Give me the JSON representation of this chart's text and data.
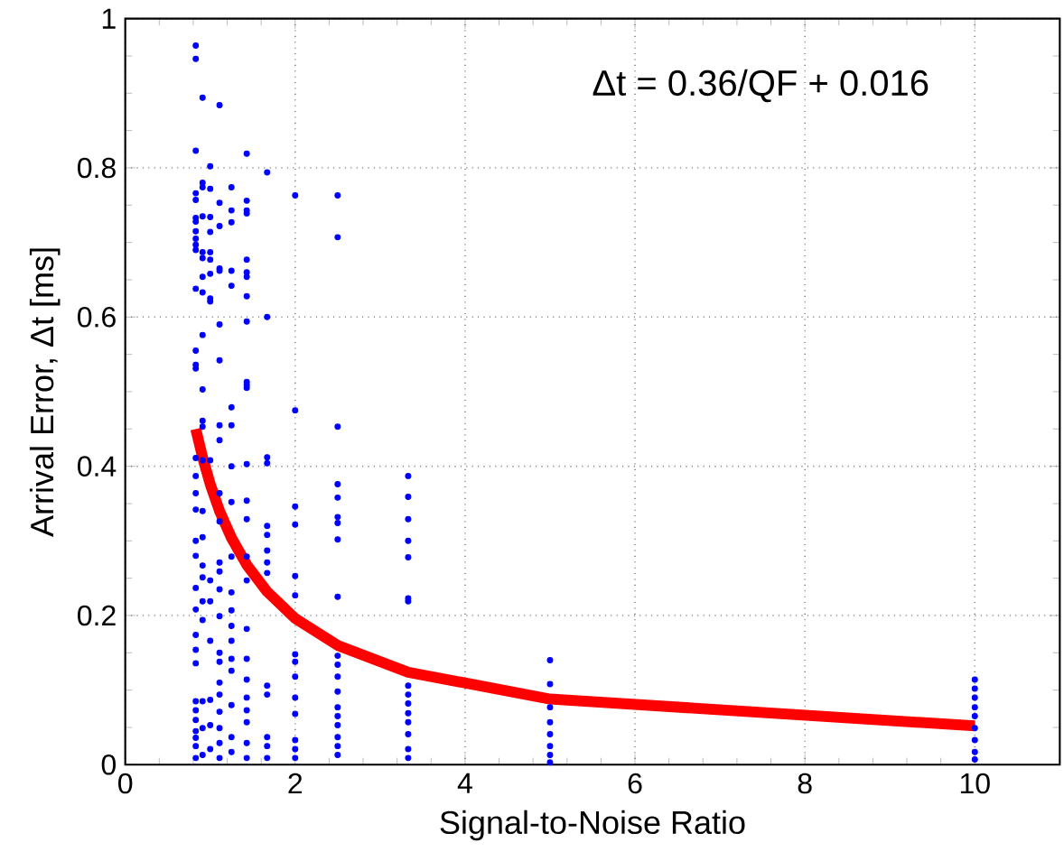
{
  "chart_data": {
    "type": "scatter",
    "xlabel": "Signal-to-Noise Ratio",
    "ylabel": "Arrival Error,  Δt [ms]",
    "annotations": [
      "Δt = 0.36/QF + 0.016"
    ],
    "xlim": [
      0,
      11
    ],
    "ylim": [
      0,
      1
    ],
    "xticks": [
      0,
      2,
      4,
      6,
      8,
      10
    ],
    "yticks": [
      0,
      0.2,
      0.4,
      0.6,
      0.8,
      1
    ],
    "grid": true,
    "series": [
      {
        "color": "#0000ff",
        "marker": "circle",
        "x": [
          0.83,
          0.83,
          0.83,
          0.83,
          0.83,
          0.83,
          0.83,
          0.83,
          0.83,
          0.83,
          0.83,
          0.83,
          0.83,
          0.83,
          0.83,
          0.83,
          0.83,
          0.83,
          0.83,
          0.83,
          0.83,
          0.83,
          0.83,
          0.83,
          0.83,
          0.83,
          0.83,
          0.83,
          0.83,
          0.83,
          0.83,
          0.83,
          0.83,
          0.91,
          0.91,
          0.91,
          0.91,
          0.91,
          0.91,
          0.91,
          0.91,
          0.91,
          0.91,
          0.91,
          0.91,
          0.91,
          0.91,
          0.91,
          0.91,
          0.91,
          0.91,
          0.91,
          0.91,
          0.91,
          0.91,
          1,
          1,
          1,
          1,
          1,
          1,
          1,
          1,
          1,
          1,
          1,
          1,
          1,
          1,
          1,
          1,
          1.11,
          1.11,
          1.11,
          1.11,
          1.11,
          1.11,
          1.11,
          1.11,
          1.11,
          1.11,
          1.11,
          1.11,
          1.11,
          1.11,
          1.11,
          1.11,
          1.11,
          1.11,
          1.11,
          1.11,
          1.11,
          1.11,
          1.11,
          1.25,
          1.25,
          1.25,
          1.25,
          1.25,
          1.25,
          1.25,
          1.25,
          1.25,
          1.25,
          1.25,
          1.25,
          1.25,
          1.25,
          1.25,
          1.25,
          1.25,
          1.25,
          1.25,
          1.43,
          1.43,
          1.43,
          1.43,
          1.43,
          1.43,
          1.43,
          1.43,
          1.43,
          1.43,
          1.43,
          1.43,
          1.43,
          1.43,
          1.43,
          1.43,
          1.43,
          1.43,
          1.43,
          1.43,
          1.43,
          1.43,
          1.43,
          1.43,
          1.43,
          1.67,
          1.67,
          1.67,
          1.67,
          1.67,
          1.67,
          1.67,
          1.67,
          1.67,
          1.67,
          1.67,
          1.67,
          1.67,
          1.67,
          2,
          2,
          2,
          2,
          2,
          2,
          2,
          2,
          2,
          2,
          2,
          2,
          2,
          2,
          2.5,
          2.5,
          2.5,
          2.5,
          2.5,
          2.5,
          2.5,
          2.5,
          2.5,
          2.5,
          2.5,
          2.5,
          2.5,
          2.5,
          2.5,
          2.5,
          2.5,
          2.5,
          2.5,
          3.33,
          3.33,
          3.33,
          3.33,
          3.33,
          3.33,
          3.33,
          3.33,
          3.33,
          3.33,
          3.33,
          3.33,
          3.33,
          3.33,
          3.33,
          5,
          5,
          5,
          5,
          5,
          5,
          5,
          5,
          10,
          10,
          10,
          10,
          10,
          10,
          10,
          10,
          10
        ],
        "values": [
          0.964,
          0.946,
          0.823,
          0.766,
          0.757,
          0.733,
          0.728,
          0.715,
          0.705,
          0.697,
          0.69,
          0.638,
          0.555,
          0.536,
          0.531,
          0.411,
          0.387,
          0.364,
          0.342,
          0.3,
          0.28,
          0.237,
          0.208,
          0.174,
          0.154,
          0.136,
          0.085,
          0.073,
          0.06,
          0.045,
          0.036,
          0.025,
          0.009,
          0.894,
          0.78,
          0.774,
          0.735,
          0.687,
          0.679,
          0.654,
          0.633,
          0.576,
          0.503,
          0.461,
          0.453,
          0.408,
          0.34,
          0.305,
          0.267,
          0.251,
          0.219,
          0.194,
          0.085,
          0.049,
          0.013,
          0.802,
          0.772,
          0.734,
          0.714,
          0.687,
          0.677,
          0.658,
          0.625,
          0.621,
          0.408,
          0.247,
          0.219,
          0.166,
          0.087,
          0.053,
          0.021,
          0.884,
          0.753,
          0.722,
          0.665,
          0.662,
          0.59,
          0.542,
          0.455,
          0.435,
          0.364,
          0.326,
          0.271,
          0.259,
          0.235,
          0.199,
          0.15,
          0.138,
          0.11,
          0.094,
          0.071,
          0.049,
          0.029,
          0.009,
          0.774,
          0.743,
          0.727,
          0.662,
          0.642,
          0.479,
          0.455,
          0.4,
          0.352,
          0.279,
          0.231,
          0.207,
          0.186,
          0.166,
          0.142,
          0.126,
          0.08,
          0.037,
          0.017,
          0.819,
          0.756,
          0.743,
          0.739,
          0.677,
          0.66,
          0.654,
          0.628,
          0.594,
          0.513,
          0.505,
          0.403,
          0.354,
          0.329,
          0.279,
          0.247,
          0.182,
          0.142,
          0.114,
          0.09,
          0.073,
          0.057,
          0.029,
          0.009,
          0.509,
          0.794,
          0.6,
          0.412,
          0.404,
          0.32,
          0.308,
          0.287,
          0.271,
          0.257,
          0.106,
          0.094,
          0.037,
          0.025,
          0.009,
          0.763,
          0.475,
          0.346,
          0.322,
          0.253,
          0.227,
          0.148,
          0.138,
          0.118,
          0.09,
          0.068,
          0.033,
          0.021,
          0.009,
          0.763,
          0.707,
          0.453,
          0.376,
          0.358,
          0.332,
          0.324,
          0.302,
          0.225,
          0.146,
          0.134,
          0.118,
          0.098,
          0.077,
          0.065,
          0.053,
          0.037,
          0.025,
          0.013,
          0.387,
          0.359,
          0.329,
          0.3,
          0.278,
          0.223,
          0.219,
          0.106,
          0.094,
          0.082,
          0.069,
          0.057,
          0.041,
          0.021,
          0.009,
          0.14,
          0.108,
          0.077,
          0.057,
          0.041,
          0.025,
          0.013,
          0.003,
          0.114,
          0.102,
          0.09,
          0.077,
          0.065,
          0.049,
          0.033,
          0.017,
          0.007
        ]
      },
      {
        "type": "line",
        "color": "#ff0000",
        "marker": "none",
        "line_style": "solid",
        "x": [
          0.83,
          0.91,
          1,
          1.11,
          1.25,
          1.43,
          1.67,
          2,
          2.5,
          3.33,
          5,
          10
        ],
        "values": [
          0.45,
          0.412,
          0.376,
          0.34,
          0.304,
          0.268,
          0.232,
          0.196,
          0.16,
          0.124,
          0.088,
          0.052
        ]
      }
    ]
  }
}
